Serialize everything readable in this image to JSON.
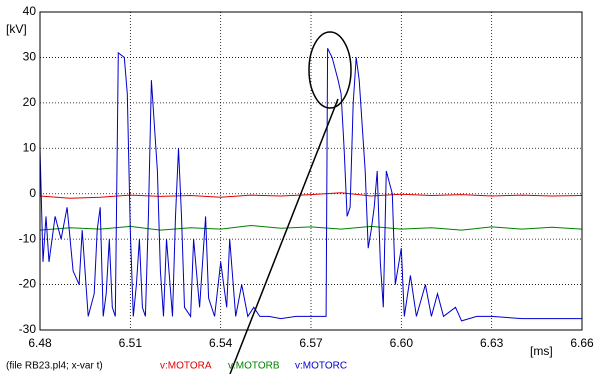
{
  "chart_data": {
    "type": "line",
    "y_label": "[kV]",
    "x_label": "[ms]",
    "caption": "(file RB23.pl4; x-var t)",
    "xlim": [
      6.48,
      6.66
    ],
    "xticks": [
      6.48,
      6.51,
      6.54,
      6.57,
      {
        "value": 6.6,
        "label": "6.60"
      },
      6.63,
      6.66
    ],
    "ylim": [
      -30,
      40
    ],
    "yticks": [
      -30,
      -20,
      -10,
      0,
      10,
      20,
      30,
      40
    ],
    "grid": true,
    "series": [
      {
        "name": "v:MOTORA",
        "color": "#e00000",
        "x": [
          6.48,
          6.49,
          6.5,
          6.51,
          6.52,
          6.53,
          6.54,
          6.55,
          6.56,
          6.57,
          6.58,
          6.59,
          6.6,
          6.61,
          6.62,
          6.63,
          6.64,
          6.65,
          6.66
        ],
        "values": [
          -0.5,
          -1,
          -0.8,
          -0.3,
          -0.6,
          -0.4,
          -0.8,
          -0.3,
          -0.5,
          -0.2,
          0.2,
          -0.5,
          -0.1,
          -0.4,
          -0.2,
          -0.5,
          -0.3,
          -0.5,
          -0.4
        ]
      },
      {
        "name": "v:MOTORB",
        "color": "#008000",
        "x": [
          6.48,
          6.49,
          6.5,
          6.51,
          6.52,
          6.53,
          6.54,
          6.55,
          6.56,
          6.57,
          6.58,
          6.59,
          6.6,
          6.61,
          6.62,
          6.63,
          6.64,
          6.65,
          6.66
        ],
        "values": [
          -8,
          -7.5,
          -7.8,
          -7.2,
          -8,
          -7.5,
          -7.8,
          -7,
          -7.6,
          -7.3,
          -7.8,
          -7.2,
          -7.8,
          -7.5,
          -8,
          -7.3,
          -7.8,
          -7.4,
          -7.8
        ]
      },
      {
        "name": "v:MOTORC",
        "color": "#0000cc",
        "x": [
          6.48,
          6.481,
          6.482,
          6.483,
          6.485,
          6.487,
          6.489,
          6.491,
          6.493,
          6.494,
          6.496,
          6.498,
          6.499,
          6.5,
          6.501,
          6.502,
          6.503,
          6.504,
          6.505,
          6.506,
          6.508,
          6.509,
          6.51,
          6.511,
          6.512,
          6.513,
          6.514,
          6.515,
          6.516,
          6.517,
          6.518,
          6.519,
          6.52,
          6.521,
          6.522,
          6.524,
          6.525,
          6.526,
          6.527,
          6.528,
          6.53,
          6.531,
          6.533,
          6.535,
          6.536,
          6.538,
          6.54,
          6.542,
          6.543,
          6.545,
          6.547,
          6.549,
          6.551,
          6.553,
          6.556,
          6.56,
          6.565,
          6.57,
          6.575,
          6.5755,
          6.577,
          6.579,
          6.58,
          6.581,
          6.582,
          6.583,
          6.584,
          6.585,
          6.586,
          6.587,
          6.588,
          6.589,
          6.59,
          6.591,
          6.592,
          6.593,
          6.594,
          6.595,
          6.597,
          6.598,
          6.6,
          6.601,
          6.603,
          6.605,
          6.608,
          6.61,
          6.612,
          6.614,
          6.618,
          6.62,
          6.625,
          6.63,
          6.64,
          6.65,
          6.66
        ],
        "values": [
          10,
          -15,
          -5,
          -15,
          -5,
          -10,
          -3,
          -17,
          -20,
          -8,
          -27,
          -22,
          -8,
          -3,
          -27,
          -22,
          -10,
          -25,
          -27,
          31,
          30,
          22,
          -8,
          -27,
          -20,
          -10,
          -25,
          -27,
          -5,
          25,
          15,
          5,
          -17,
          -27,
          -10,
          -27,
          -5,
          10,
          -5,
          -25,
          -27,
          -10,
          -25,
          -5,
          -23,
          -27,
          -15,
          -25,
          -10,
          -27,
          -20,
          -27,
          -25,
          -27,
          -27,
          -27.5,
          -27,
          -27,
          -27,
          32,
          30,
          25,
          22,
          10,
          -5,
          -3,
          20,
          30,
          25,
          15,
          5,
          -12,
          -8,
          -3,
          5,
          -15,
          -25,
          5,
          0,
          -20,
          -12,
          -27,
          -18,
          -27,
          -20,
          -27,
          -22,
          -27,
          -25,
          -28,
          -27,
          -27,
          -27.5,
          -27.5,
          -27.5
        ]
      }
    ]
  }
}
